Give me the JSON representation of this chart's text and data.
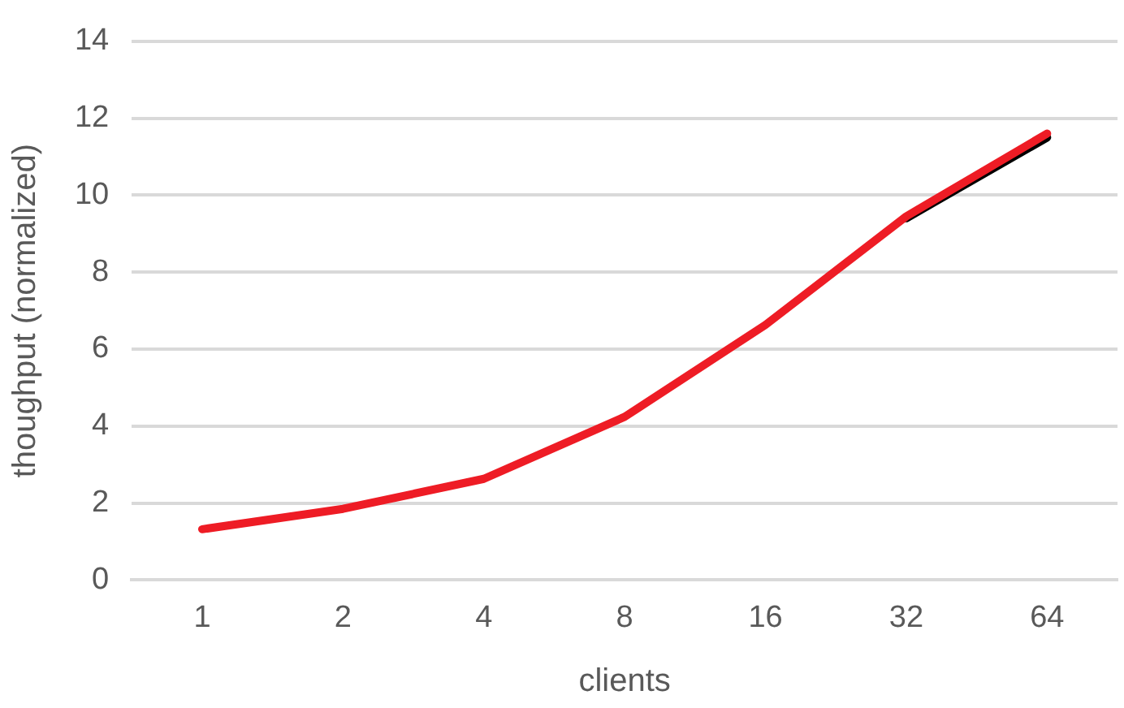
{
  "chart_data": {
    "type": "line",
    "xlabel": "clients",
    "ylabel": "thoughput (normalized)",
    "categories": [
      "1",
      "2",
      "4",
      "8",
      "16",
      "32",
      "64"
    ],
    "series": [
      {
        "color": "#000000",
        "values": [
          null,
          null,
          null,
          null,
          null,
          9.4,
          11.5
        ]
      },
      {
        "color": "#ee1c25",
        "values": [
          1.32,
          1.85,
          2.63,
          4.24,
          6.63,
          9.45,
          11.6
        ]
      }
    ],
    "ylim": [
      0,
      14
    ],
    "yticks": [
      0,
      2,
      4,
      6,
      8,
      10,
      12,
      14
    ],
    "grid": "y",
    "legend": false,
    "marker": "none",
    "line_style": "solid"
  }
}
